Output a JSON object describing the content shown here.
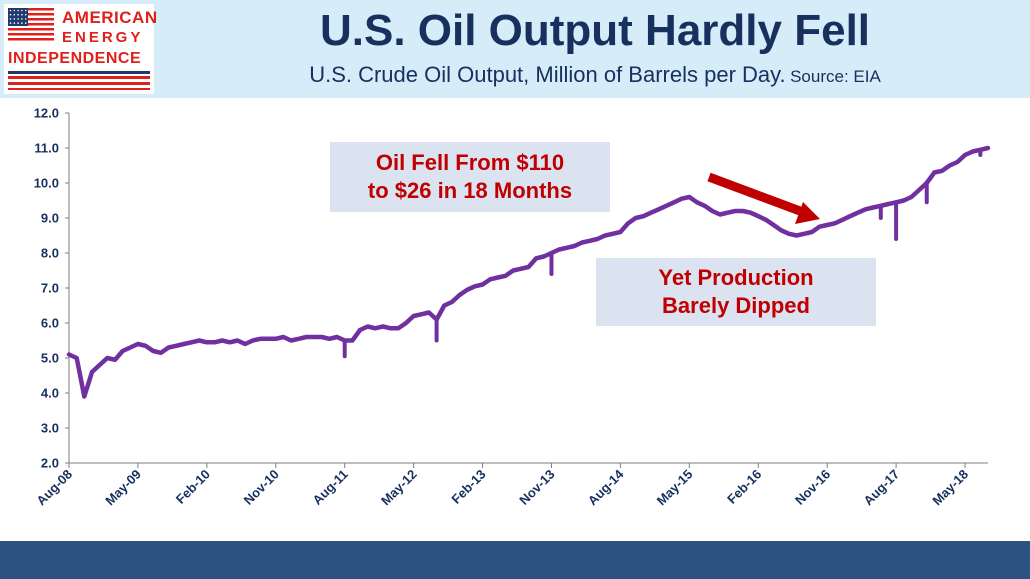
{
  "header": {
    "title": "U.S. Oil Output Hardly Fell",
    "subtitle": "U.S. Crude Oil Output, Million of Barrels per Day.",
    "source": "Source: EIA"
  },
  "logo": {
    "line1": "AMERICAN",
    "line2": "ENERGY",
    "line3": "INDEPENDENCE",
    "colors": {
      "red": "#e0201b",
      "navy": "#1f3a6b"
    }
  },
  "annotations": {
    "oil_fell": [
      "Oil Fell From $110",
      "to $26 in 18 Months"
    ],
    "production": [
      "Yet Production",
      "Barely Dipped"
    ],
    "arrow_icon": "down-right-arrow"
  },
  "colors": {
    "line": "#7030a0",
    "title": "#17305e",
    "axis_labels": "#17305e",
    "callout_text": "#c00000",
    "callout_bg": "#dbe3f1",
    "header_bg": "#d6ecf9",
    "footer": "#2c5282"
  },
  "chart_data": {
    "type": "line",
    "ylim": [
      2.0,
      12.0
    ],
    "yticks": [
      "2.0",
      "3.0",
      "4.0",
      "5.0",
      "6.0",
      "7.0",
      "8.0",
      "9.0",
      "10.0",
      "11.0",
      "12.0"
    ],
    "xticks": [
      "Aug-08",
      "May-09",
      "Feb-10",
      "Nov-10",
      "Aug-11",
      "May-12",
      "Feb-13",
      "Nov-13",
      "Aug-14",
      "May-15",
      "Feb-16",
      "Nov-16",
      "Aug-17",
      "May-18"
    ],
    "xlim": [
      "2008-08",
      "2018-08"
    ],
    "grid": false,
    "series": [
      {
        "x": [
          "2008-08",
          "2008-09",
          "2008-10",
          "2008-11",
          "2008-12",
          "2009-01",
          "2009-02",
          "2009-03",
          "2009-04",
          "2009-05",
          "2009-06",
          "2009-07",
          "2009-08",
          "2009-09",
          "2009-10",
          "2009-11",
          "2009-12",
          "2010-01",
          "2010-02",
          "2010-03",
          "2010-04",
          "2010-05",
          "2010-06",
          "2010-07",
          "2010-08",
          "2010-09",
          "2010-10",
          "2010-11",
          "2010-12",
          "2011-01",
          "2011-02",
          "2011-03",
          "2011-04",
          "2011-05",
          "2011-06",
          "2011-07",
          "2011-08",
          "2011-09",
          "2011-10",
          "2011-11",
          "2011-12",
          "2012-01",
          "2012-02",
          "2012-03",
          "2012-04",
          "2012-05",
          "2012-06",
          "2012-07",
          "2012-08",
          "2012-09",
          "2012-10",
          "2012-11",
          "2012-12",
          "2013-01",
          "2013-02",
          "2013-03",
          "2013-04",
          "2013-05",
          "2013-06",
          "2013-07",
          "2013-08",
          "2013-09",
          "2013-10",
          "2013-11",
          "2013-12",
          "2014-01",
          "2014-02",
          "2014-03",
          "2014-04",
          "2014-05",
          "2014-06",
          "2014-07",
          "2014-08",
          "2014-09",
          "2014-10",
          "2014-11",
          "2014-12",
          "2015-01",
          "2015-02",
          "2015-03",
          "2015-04",
          "2015-05",
          "2015-06",
          "2015-07",
          "2015-08",
          "2015-09",
          "2015-10",
          "2015-11",
          "2015-12",
          "2016-01",
          "2016-02",
          "2016-03",
          "2016-04",
          "2016-05",
          "2016-06",
          "2016-07",
          "2016-08",
          "2016-09",
          "2016-10",
          "2016-11",
          "2016-12",
          "2017-01",
          "2017-02",
          "2017-03",
          "2017-04",
          "2017-05",
          "2017-06",
          "2017-07",
          "2017-08",
          "2017-09",
          "2017-10",
          "2017-11",
          "2017-12",
          "2018-01",
          "2018-02",
          "2018-03",
          "2018-04",
          "2018-05",
          "2018-06",
          "2018-07",
          "2018-08"
        ],
        "values": [
          5.1,
          5.0,
          3.9,
          4.6,
          4.8,
          5.0,
          4.95,
          5.2,
          5.3,
          5.4,
          5.35,
          5.2,
          5.15,
          5.3,
          5.35,
          5.4,
          5.45,
          5.5,
          5.45,
          5.45,
          5.5,
          5.45,
          5.5,
          5.4,
          5.5,
          5.55,
          5.55,
          5.55,
          5.6,
          5.5,
          5.55,
          5.6,
          5.6,
          5.6,
          5.55,
          5.6,
          5.5,
          5.5,
          5.8,
          5.9,
          5.85,
          5.9,
          5.85,
          5.85,
          6.0,
          6.2,
          6.25,
          6.3,
          6.1,
          6.5,
          6.6,
          6.8,
          6.95,
          7.05,
          7.1,
          7.25,
          7.3,
          7.35,
          7.5,
          7.55,
          7.6,
          7.85,
          7.9,
          8.0,
          8.1,
          8.15,
          8.2,
          8.3,
          8.35,
          8.4,
          8.5,
          8.55,
          8.6,
          8.85,
          9.0,
          9.05,
          9.15,
          9.25,
          9.35,
          9.45,
          9.55,
          9.6,
          9.45,
          9.35,
          9.2,
          9.1,
          9.15,
          9.2,
          9.2,
          9.15,
          9.05,
          8.95,
          8.8,
          8.65,
          8.55,
          8.5,
          8.55,
          8.6,
          8.75,
          8.8,
          8.85,
          8.95,
          9.05,
          9.15,
          9.25,
          9.3,
          9.35,
          9.4,
          9.45,
          9.5,
          9.6,
          9.8,
          10.0,
          10.3,
          10.35,
          10.5,
          10.6,
          10.8,
          10.9,
          10.95,
          11.0
        ]
      }
    ],
    "spikes": [
      {
        "x": "2011-08",
        "value": 5.05
      },
      {
        "x": "2012-08",
        "value": 5.5
      },
      {
        "x": "2013-11",
        "value": 7.4
      },
      {
        "x": "2017-06",
        "value": 9.0
      },
      {
        "x": "2017-08",
        "value": 8.4
      },
      {
        "x": "2017-12",
        "value": 9.45
      },
      {
        "x": "2018-07",
        "value": 10.8
      }
    ]
  }
}
